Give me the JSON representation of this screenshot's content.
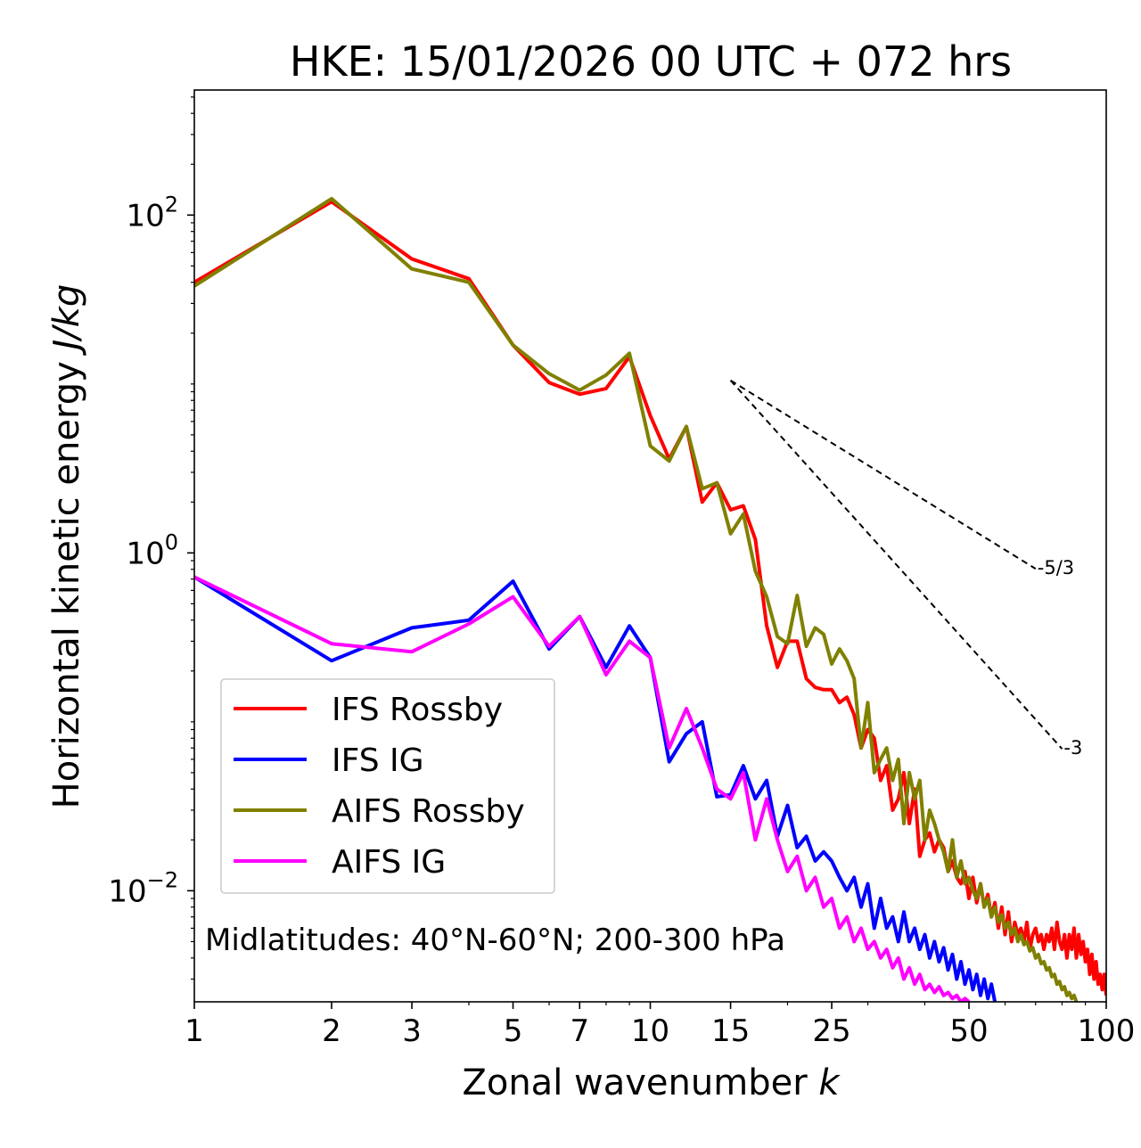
{
  "chart_data": {
    "type": "line",
    "title": "HKE: 15/01/2026 00 UTC + 072 hrs",
    "xlabel": "Zonal wavenumber",
    "xlabel_var": "k",
    "ylabel": "Horizontal kinetic energy",
    "ylabel_units": "J/kg",
    "xscale": "log",
    "yscale": "log",
    "xlim": [
      1,
      100
    ],
    "ylim": [
      0.0022,
      550
    ],
    "xticks": [
      1,
      2,
      3,
      5,
      7,
      10,
      15,
      25,
      50,
      100
    ],
    "xtick_labels": [
      "1",
      "2",
      "3",
      "5",
      "7",
      "10",
      "15",
      "25",
      "50",
      "100"
    ],
    "yticks": [
      {
        "value": 100,
        "base": "10",
        "exp": "2"
      },
      {
        "value": 1,
        "base": "10",
        "exp": "0"
      },
      {
        "value": 0.01,
        "base": "10",
        "exp": "−2"
      }
    ],
    "annotation": "Midlatitudes: 40°N-60°N; 200-300 hPa",
    "reference_lines": [
      {
        "label": "-5/3",
        "slope": -1.6667,
        "x_start": 15,
        "y_start": 10.5,
        "x_end": 70,
        "color": "#000000"
      },
      {
        "label": "-3",
        "slope": -3,
        "x_start": 15,
        "y_start": 10.5,
        "x_end": 80,
        "color": "#000000"
      }
    ],
    "legend_position": "lower-left",
    "series": [
      {
        "name": "IFS Rossby",
        "color": "#ff0000",
        "x_start": 1,
        "values": [
          40,
          120,
          55,
          42,
          17,
          10.2,
          8.7,
          9.4,
          14.5,
          6.5,
          3.6,
          5.6,
          2.0,
          2.6,
          1.8,
          1.9,
          1.2,
          0.37,
          0.21,
          0.3,
          0.3,
          0.18,
          0.16,
          0.155,
          0.155,
          0.13,
          0.14,
          0.11,
          0.07,
          0.09,
          0.08,
          0.045,
          0.055,
          0.03,
          0.035,
          0.05,
          0.025,
          0.04,
          0.016,
          0.02,
          0.022,
          0.017,
          0.02,
          0.018,
          0.013,
          0.015,
          0.012,
          0.011,
          0.013,
          0.009,
          0.012,
          0.0085,
          0.011,
          0.008,
          0.0095,
          0.007,
          0.0085,
          0.006,
          0.008,
          0.0055,
          0.0075,
          0.005,
          0.0065,
          0.0055,
          0.006,
          0.005,
          0.0065,
          0.0045,
          0.0055,
          0.006,
          0.005,
          0.0055,
          0.0045,
          0.0055,
          0.005,
          0.006,
          0.0045,
          0.0065,
          0.005,
          0.0045,
          0.0055,
          0.004,
          0.0055,
          0.0045,
          0.006,
          0.004,
          0.0055,
          0.0042,
          0.005,
          0.0038,
          0.0045,
          0.0032,
          0.0042,
          0.003,
          0.0038,
          0.0028,
          0.0032,
          0.0026,
          0.0032,
          0.0024
        ]
      },
      {
        "name": "IFS IG",
        "color": "#0000ff",
        "x_start": 1,
        "values": [
          0.72,
          0.23,
          0.36,
          0.4,
          0.68,
          0.27,
          0.42,
          0.21,
          0.37,
          0.24,
          0.058,
          0.085,
          0.1,
          0.036,
          0.037,
          0.055,
          0.035,
          0.045,
          0.021,
          0.032,
          0.018,
          0.021,
          0.015,
          0.017,
          0.015,
          0.012,
          0.01,
          0.012,
          0.008,
          0.011,
          0.006,
          0.009,
          0.006,
          0.007,
          0.005,
          0.0075,
          0.005,
          0.006,
          0.0045,
          0.0055,
          0.004,
          0.005,
          0.0038,
          0.0046,
          0.0034,
          0.0042,
          0.003,
          0.0038,
          0.0028,
          0.0034,
          0.0026,
          0.0032,
          0.0024,
          0.003,
          0.0023,
          0.0028,
          0.0022
        ]
      },
      {
        "name": "AIFS Rossby",
        "color": "#808000",
        "x_start": 1,
        "values": [
          38,
          125,
          48,
          40,
          17,
          11.5,
          9.2,
          11.3,
          15.2,
          4.3,
          3.5,
          5.6,
          2.4,
          2.6,
          1.3,
          1.7,
          0.78,
          0.55,
          0.32,
          0.29,
          0.56,
          0.28,
          0.36,
          0.33,
          0.22,
          0.27,
          0.23,
          0.18,
          0.07,
          0.13,
          0.05,
          0.06,
          0.07,
          0.045,
          0.06,
          0.025,
          0.05,
          0.035,
          0.045,
          0.02,
          0.03,
          0.025,
          0.02,
          0.017,
          0.013,
          0.02,
          0.012,
          0.015,
          0.011,
          0.012,
          0.01,
          0.009,
          0.011,
          0.008,
          0.009,
          0.007,
          0.008,
          0.0065,
          0.0072,
          0.006,
          0.0065,
          0.0055,
          0.006,
          0.005,
          0.0055,
          0.0048,
          0.005,
          0.0044,
          0.0046,
          0.004,
          0.0042,
          0.0037,
          0.0038,
          0.0034,
          0.0035,
          0.0031,
          0.0032,
          0.0028,
          0.0029,
          0.0026,
          0.0027,
          0.0024,
          0.0025,
          0.0023,
          0.0024,
          0.0022
        ]
      },
      {
        "name": "AIFS IG",
        "color": "#ff00ff",
        "x_start": 1,
        "values": [
          0.72,
          0.29,
          0.26,
          0.38,
          0.55,
          0.28,
          0.42,
          0.19,
          0.3,
          0.24,
          0.07,
          0.12,
          0.07,
          0.04,
          0.035,
          0.05,
          0.02,
          0.035,
          0.02,
          0.013,
          0.016,
          0.01,
          0.012,
          0.008,
          0.009,
          0.006,
          0.007,
          0.005,
          0.006,
          0.0045,
          0.005,
          0.004,
          0.0045,
          0.0035,
          0.004,
          0.003,
          0.0035,
          0.0028,
          0.0032,
          0.0026,
          0.0028,
          0.0025,
          0.0027,
          0.0024,
          0.0025,
          0.0023,
          0.0024,
          0.0022,
          0.0023,
          0.0022
        ]
      }
    ]
  }
}
